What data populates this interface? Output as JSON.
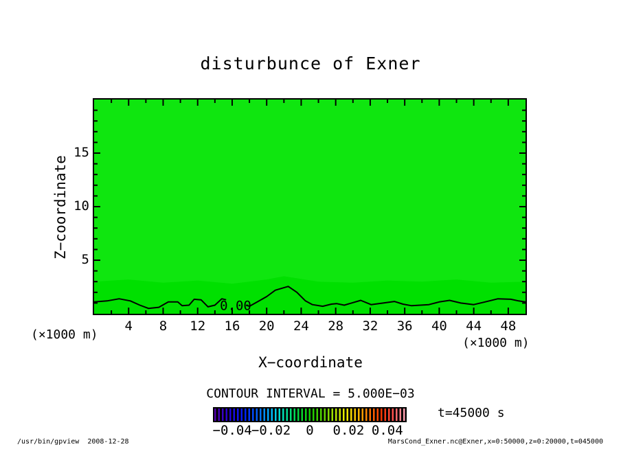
{
  "title": "disturbunce of Exner",
  "plot": {
    "xlabel": "X−coordinate",
    "ylabel": "Z−coordinate",
    "x_unit_left": "(×1000 m)",
    "x_unit_right": "(×1000 m)"
  },
  "contour_note": "CONTOUR INTERVAL = 5.000E−03",
  "time_label": "t=45000 s",
  "footer": {
    "left": "/usr/bin/gpview  2008-12-28",
    "right": "MarsCond_Exner.nc@Exner,x=0:50000,z=0:20000,t=045000"
  },
  "colors": {
    "field_green": "#0fe60f",
    "band_green": "#00e000",
    "line": "#000000",
    "frame": "#000000",
    "background": "#ffffff"
  },
  "chart_data": {
    "type": "heatmap",
    "title": "disturbunce of Exner",
    "xlabel": "X-coordinate (×1000 m)",
    "ylabel": "Z-coordinate (×1000 m)",
    "xlim": [
      0,
      50
    ],
    "ylim": [
      0,
      20
    ],
    "x_major_ticks": [
      4,
      8,
      12,
      16,
      20,
      24,
      28,
      32,
      36,
      40,
      44,
      48
    ],
    "x_minor_step": 2,
    "y_major_ticks": [
      5,
      10,
      15
    ],
    "y_minor_step": 1,
    "grid": false,
    "contour_interval": 0.005,
    "time": "t=45000 s",
    "field_description": "Exner function disturbance; field is ~0 (uniform green) with the 0.00 contour meandering near the surface at z ≈ 0.5–2.5 km and a faint lighter shade band below z ≈ 3 km",
    "zero_contour": {
      "label": {
        "text": "0.00",
        "x": 16.4,
        "z": 0.8
      },
      "segments": [
        [
          [
            0,
            1.1
          ],
          [
            1.5,
            1.2
          ],
          [
            2.9,
            1.4
          ],
          [
            4.2,
            1.2
          ],
          [
            5.3,
            0.8
          ],
          [
            6.3,
            0.5
          ],
          [
            7.5,
            0.6
          ],
          [
            8.6,
            1.1
          ],
          [
            9.7,
            1.1
          ],
          [
            10.2,
            0.75
          ],
          [
            11.0,
            0.8
          ],
          [
            11.6,
            1.35
          ],
          [
            12.4,
            1.3
          ],
          [
            13.2,
            0.65
          ],
          [
            14.0,
            0.8
          ],
          [
            14.8,
            1.4
          ],
          [
            15.3,
            1.3
          ]
        ],
        [
          [
            17.6,
            0.8
          ],
          [
            18.0,
            0.7
          ],
          [
            19.0,
            1.15
          ],
          [
            20.0,
            1.6
          ],
          [
            21.0,
            2.2
          ],
          [
            22.5,
            2.55
          ],
          [
            23.5,
            2.0
          ],
          [
            24.5,
            1.2
          ],
          [
            25.3,
            0.85
          ],
          [
            26.5,
            0.7
          ],
          [
            27.5,
            0.9
          ],
          [
            28.1,
            0.95
          ],
          [
            29.0,
            0.8
          ],
          [
            30.9,
            1.25
          ],
          [
            32.1,
            0.85
          ],
          [
            33.5,
            1.0
          ],
          [
            34.8,
            1.15
          ],
          [
            35.8,
            0.9
          ],
          [
            36.8,
            0.75
          ],
          [
            37.8,
            0.8
          ],
          [
            38.8,
            0.85
          ],
          [
            40.0,
            1.1
          ],
          [
            41.2,
            1.25
          ],
          [
            42.5,
            1.0
          ],
          [
            44.0,
            0.85
          ],
          [
            45.3,
            1.1
          ],
          [
            46.8,
            1.4
          ],
          [
            48.3,
            1.35
          ],
          [
            49.2,
            1.2
          ],
          [
            50,
            1.1
          ]
        ]
      ]
    },
    "shade_band": {
      "top_z_points": [
        [
          0,
          3.0
        ],
        [
          4,
          3.2
        ],
        [
          8,
          2.9
        ],
        [
          12,
          3.1
        ],
        [
          16,
          2.8
        ],
        [
          20,
          3.2
        ],
        [
          22,
          3.5
        ],
        [
          26,
          3.0
        ],
        [
          30,
          2.9
        ],
        [
          34,
          3.1
        ],
        [
          38,
          3.0
        ],
        [
          42,
          3.2
        ],
        [
          46,
          2.9
        ],
        [
          50,
          3.0
        ]
      ]
    },
    "colorbar": {
      "min": -0.05,
      "max": 0.05,
      "ticks": [
        {
          "value": -0.04,
          "label": "−0.04"
        },
        {
          "value": -0.02,
          "label": "−0.02"
        },
        {
          "value": 0,
          "label": "0"
        },
        {
          "value": 0.02,
          "label": "0.02"
        },
        {
          "value": 0.04,
          "label": "0.04"
        }
      ]
    }
  }
}
